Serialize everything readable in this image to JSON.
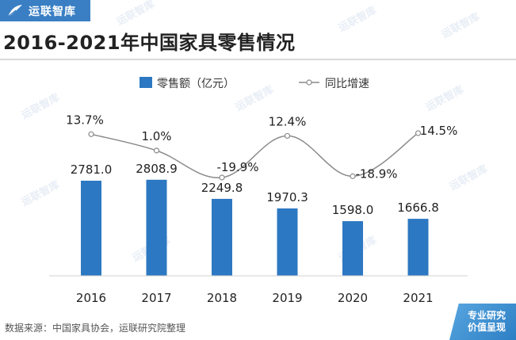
{
  "brand": {
    "name": "运联智库",
    "logo_icon": "feather-logo-icon"
  },
  "title": "2016-2021年中国家具零售情况",
  "source": "数据来源：中国家具协会，运联研究院整理",
  "stamp": {
    "line1": "专业研究",
    "line2": "价值呈现"
  },
  "colors": {
    "bar": "#2d78c2",
    "line": "#8a8a8a",
    "brand": "#3a7fc4"
  },
  "chart_data": {
    "type": "bar",
    "categories": [
      "2016",
      "2017",
      "2018",
      "2019",
      "2020",
      "2021"
    ],
    "series": [
      {
        "name": "零售额（亿元）",
        "type": "bar",
        "values": [
          2781.0,
          2808.9,
          2249.8,
          1970.3,
          1598.0,
          1666.8
        ],
        "labels": [
          "2781.0",
          "2808.9",
          "2249.8",
          "1970.3",
          "1598.0",
          "1666.8"
        ]
      },
      {
        "name": "同比增速",
        "type": "line",
        "values": [
          13.7,
          1.0,
          -19.9,
          12.4,
          -18.9,
          14.5
        ],
        "labels": [
          "13.7%",
          "1.0%",
          "-19.9%",
          "12.4%",
          "-18.9%",
          "14.5%"
        ]
      }
    ],
    "legend_position": "top-center",
    "grid": false
  }
}
